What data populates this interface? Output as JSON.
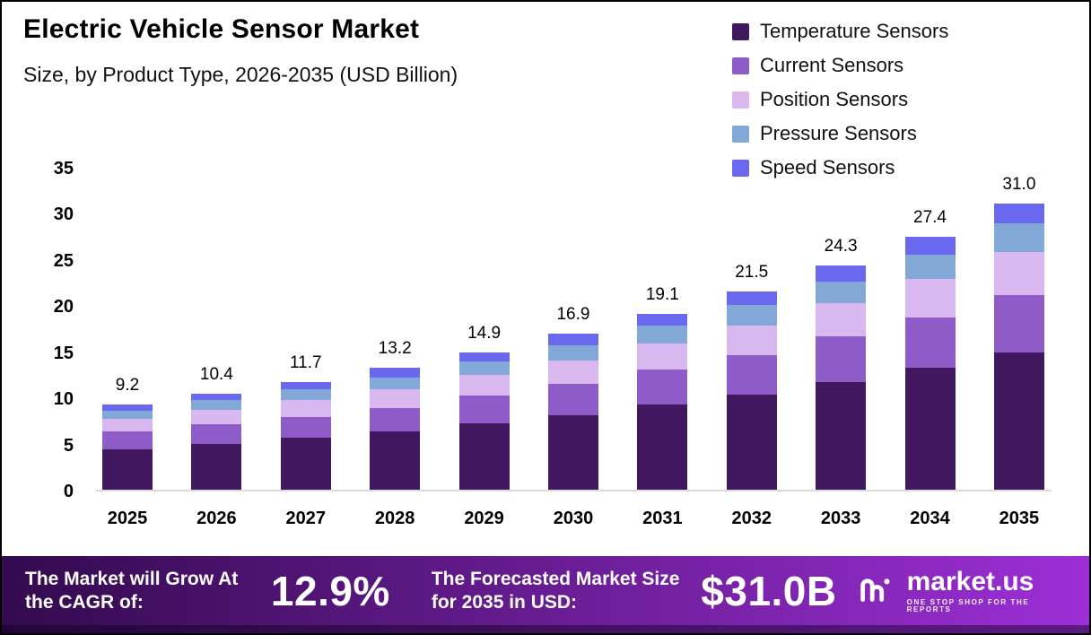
{
  "header": {
    "title": "Electric Vehicle Sensor Market",
    "subtitle": "Size, by Product Type, 2026-2035 (USD Billion)"
  },
  "chart_data": {
    "type": "bar",
    "stacked": true,
    "title": "Electric Vehicle Sensor Market Size, by Product Type, 2026-2035 (USD Billion)",
    "categories": [
      "2025",
      "2026",
      "2027",
      "2028",
      "2029",
      "2030",
      "2031",
      "2032",
      "2033",
      "2034",
      "2035"
    ],
    "totals": [
      9.2,
      10.4,
      11.7,
      13.2,
      14.9,
      16.9,
      19.1,
      21.5,
      24.3,
      27.4,
      31.0
    ],
    "series": [
      {
        "name": "Temperature Sensors",
        "color": "#41185f",
        "values": [
          4.4,
          5.0,
          5.6,
          6.3,
          7.2,
          8.1,
          9.2,
          10.3,
          11.7,
          13.2,
          14.9
        ]
      },
      {
        "name": "Current Sensors",
        "color": "#8e5bc8",
        "values": [
          1.9,
          2.1,
          2.3,
          2.6,
          3.0,
          3.4,
          3.8,
          4.3,
          4.9,
          5.5,
          6.2
        ]
      },
      {
        "name": "Position Sensors",
        "color": "#d9b8ef",
        "values": [
          1.4,
          1.6,
          1.8,
          2.0,
          2.2,
          2.5,
          2.9,
          3.2,
          3.6,
          4.1,
          4.7
        ]
      },
      {
        "name": "Pressure Sensors",
        "color": "#82a8d8",
        "values": [
          0.9,
          1.0,
          1.2,
          1.3,
          1.5,
          1.7,
          1.9,
          2.2,
          2.4,
          2.7,
          3.1
        ]
      },
      {
        "name": "Speed Sensors",
        "color": "#6a68ee",
        "values": [
          0.6,
          0.7,
          0.8,
          1.0,
          1.0,
          1.2,
          1.3,
          1.5,
          1.7,
          1.9,
          2.1
        ]
      }
    ],
    "y_ticks": [
      0,
      5,
      10,
      15,
      20,
      25,
      30,
      35
    ],
    "ylim": [
      0,
      35
    ],
    "xlabel": "",
    "ylabel": "",
    "grid": false,
    "legend_position": "top-right"
  },
  "footer": {
    "cagr_label": "The Market will Grow At the CAGR of:",
    "cagr_value": "12.9%",
    "forecast_label": "The Forecasted Market Size for 2035 in USD:",
    "forecast_value": "$31.0B",
    "brand": "market.us",
    "brand_tagline": "ONE STOP SHOP FOR THE REPORTS",
    "gradient": [
      "#330a4e",
      "#9c2fd6"
    ]
  }
}
